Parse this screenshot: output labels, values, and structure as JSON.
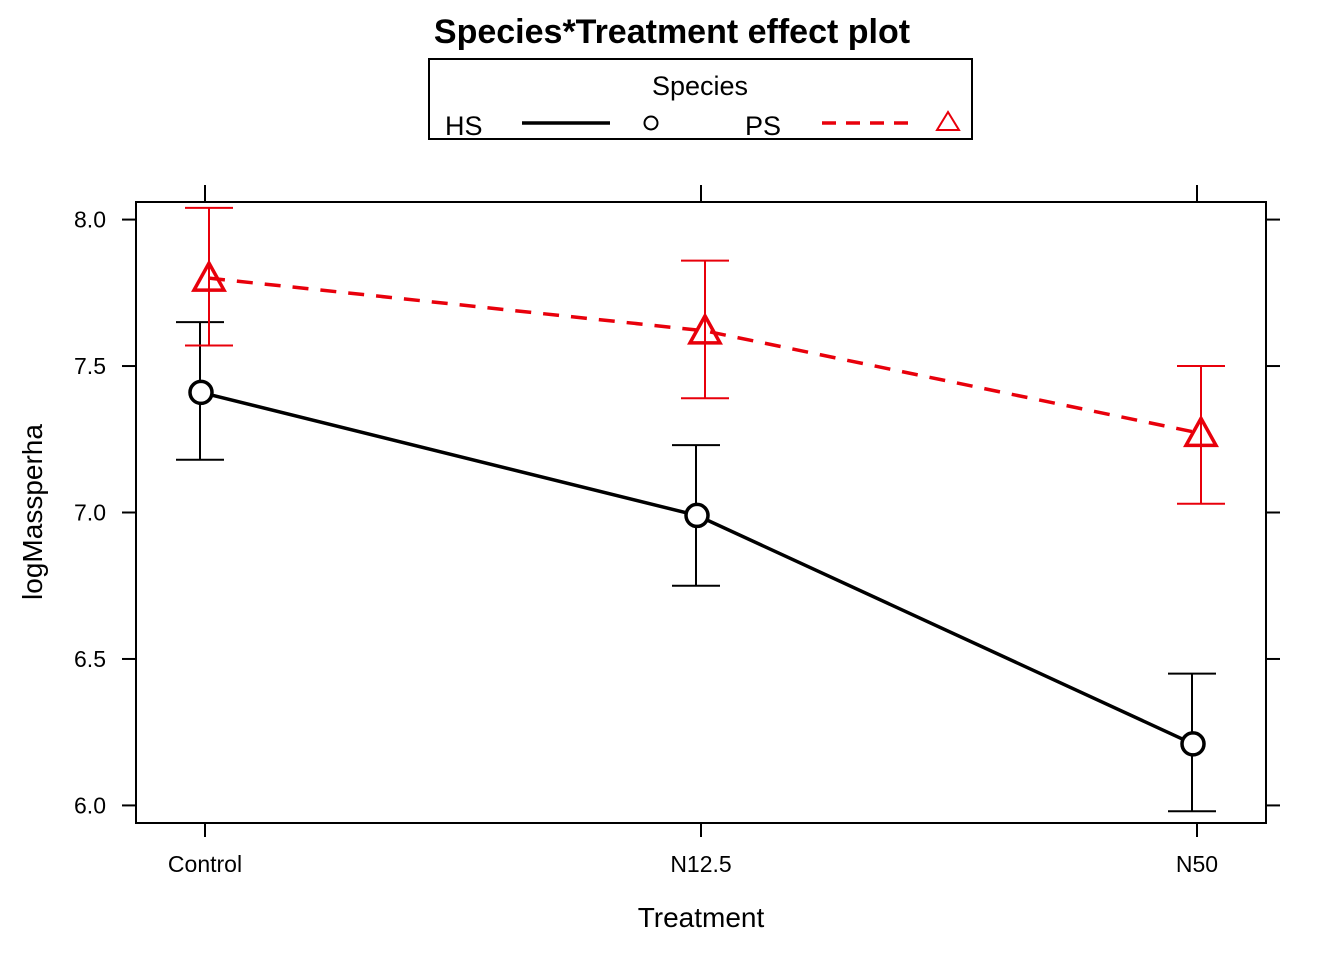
{
  "chart_data": {
    "type": "line",
    "title": "Species*Treatment effect plot",
    "xlabel": "Treatment",
    "ylabel": "logMassperha",
    "categories": [
      "Control",
      "N12.5",
      "N50"
    ],
    "ylim": [
      5.94,
      8.06
    ],
    "yticks": [
      6.0,
      6.5,
      7.0,
      7.5,
      8.0
    ],
    "ytick_labels": [
      "6.0",
      "6.5",
      "7.0",
      "7.5",
      "8.0"
    ],
    "legend": {
      "title": "Species",
      "placement": "top"
    },
    "grid": false,
    "series": [
      {
        "name": "HS",
        "color": "#000000",
        "line_style": "solid",
        "marker": "circle",
        "values": [
          7.41,
          6.99,
          6.21
        ],
        "lower": [
          7.18,
          6.75,
          5.98
        ],
        "upper": [
          7.65,
          7.23,
          6.45
        ]
      },
      {
        "name": "PS",
        "color": "#e8000b",
        "line_style": "dashed",
        "marker": "triangle",
        "values": [
          7.8,
          7.62,
          7.27
        ],
        "lower": [
          7.57,
          7.39,
          7.03
        ],
        "upper": [
          8.04,
          7.86,
          7.5
        ]
      }
    ]
  }
}
